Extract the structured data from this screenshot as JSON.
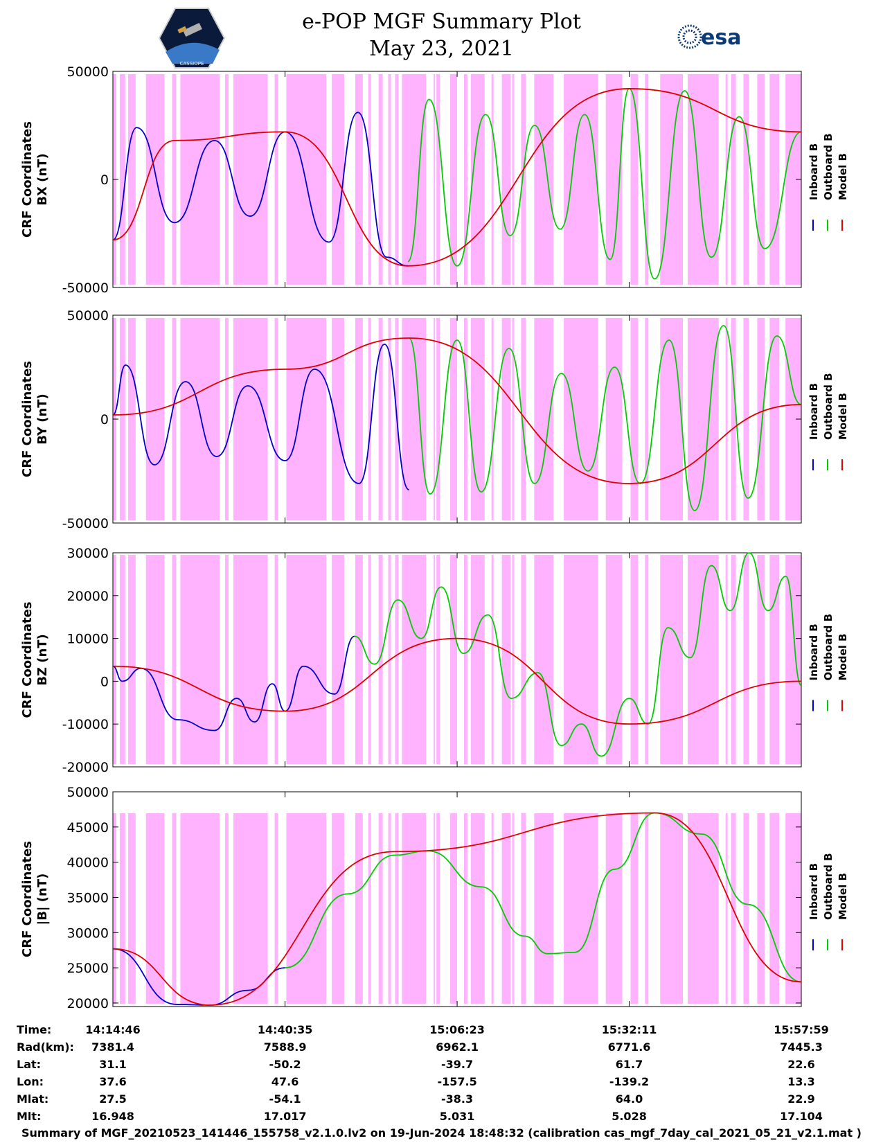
{
  "header": {
    "title_line1": "e-POP MGF Summary Plot",
    "title_line2": "May 23, 2021",
    "logo_left": "CASSIOPE",
    "logo_right": "esa"
  },
  "colors": {
    "background_band": "#ffb3ff",
    "inboard": "#0000cc",
    "outboard": "#00cc00",
    "model": "#e00000"
  },
  "legend": {
    "labels": [
      "Inboard B",
      "Outboard B",
      "Model B"
    ],
    "colors": [
      "#0000cc",
      "#00cc00",
      "#e00000"
    ]
  },
  "chart_data": [
    {
      "type": "line",
      "panel": "BX",
      "ylabel": [
        "CRF Coordinates",
        "BX (nT)"
      ],
      "ylim": [
        -50000,
        50000
      ],
      "yticks": [
        50000,
        0,
        -50000
      ],
      "ytick_labels": [
        "50000",
        "0",
        "-50000"
      ],
      "x_range": [
        "14:14:46",
        "15:57:59"
      ],
      "series": [
        {
          "name": "Inboard B",
          "x": [
            "14:14:46",
            "14:18:20",
            "14:24:00",
            "14:30:00",
            "14:35:20",
            "14:40:35",
            "14:47:10",
            "14:51:30",
            "14:55:50",
            "14:59:00"
          ],
          "values": [
            -28000,
            24000,
            -20000,
            18000,
            -17000,
            22000,
            -29000,
            31000,
            -36000,
            -40000
          ]
        },
        {
          "name": "Outboard B",
          "x": [
            "14:59:00",
            "15:02:10",
            "15:06:23",
            "15:10:40",
            "15:14:20",
            "15:18:00",
            "15:21:50",
            "15:25:30",
            "15:29:20",
            "15:32:11",
            "15:36:00",
            "15:40:30",
            "15:44:30",
            "15:48:40",
            "15:52:30",
            "15:57:59"
          ],
          "values": [
            -38000,
            37000,
            -40000,
            30000,
            -26000,
            25000,
            -23000,
            30000,
            -37000,
            42000,
            -46000,
            41000,
            -36000,
            29000,
            -32000,
            22000
          ]
        },
        {
          "name": "Model B",
          "x": [
            "14:14:46",
            "14:24:00",
            "14:40:35",
            "14:59:00",
            "15:32:11",
            "15:57:59"
          ],
          "values": [
            -28000,
            18000,
            22000,
            -40000,
            42000,
            22000
          ]
        }
      ]
    },
    {
      "type": "line",
      "panel": "BY",
      "ylabel": [
        "CRF Coordinates",
        "BY (nT)"
      ],
      "ylim": [
        -50000,
        50000
      ],
      "yticks": [
        50000,
        0,
        -50000
      ],
      "ytick_labels": [
        "50000",
        "0",
        "-50000"
      ],
      "x_range": [
        "14:14:46",
        "15:57:59"
      ],
      "series": [
        {
          "name": "Inboard B",
          "x": [
            "14:14:46",
            "14:16:40",
            "14:21:00",
            "14:25:40",
            "14:30:20",
            "14:35:00",
            "14:40:35",
            "14:45:00",
            "14:51:40",
            "14:55:30",
            "14:59:10"
          ],
          "values": [
            2000,
            26000,
            -22000,
            18000,
            -18000,
            16000,
            -20000,
            24000,
            -31000,
            36000,
            -34000
          ]
        },
        {
          "name": "Outboard B",
          "x": [
            "14:59:10",
            "15:02:20",
            "15:06:23",
            "15:10:00",
            "15:14:10",
            "15:18:00",
            "15:22:00",
            "15:26:00",
            "15:30:00",
            "15:33:50",
            "15:38:10",
            "15:42:00",
            "15:46:20",
            "15:50:00",
            "15:54:20",
            "15:57:59"
          ],
          "values": [
            39000,
            -36000,
            38000,
            -35000,
            34000,
            -31000,
            22000,
            -25000,
            25000,
            -31000,
            38000,
            -44000,
            45000,
            -38000,
            40000,
            7000
          ]
        },
        {
          "name": "Model B",
          "x": [
            "14:14:46",
            "14:40:35",
            "14:59:10",
            "15:32:11",
            "15:57:59"
          ],
          "values": [
            2000,
            24000,
            39000,
            -31000,
            7000
          ]
        }
      ]
    },
    {
      "type": "line",
      "panel": "BZ",
      "ylabel": [
        "CRF Coordinates",
        "BZ (nT)"
      ],
      "ylim": [
        -20000,
        30000
      ],
      "yticks": [
        30000,
        20000,
        10000,
        0,
        -10000,
        -20000
      ],
      "ytick_labels": [
        "30000",
        "20000",
        "10000",
        "0",
        "-10000",
        "-20000"
      ],
      "x_range": [
        "14:14:46",
        "15:57:59"
      ],
      "series": [
        {
          "name": "Inboard B",
          "x": [
            "14:14:46",
            "14:16:10",
            "14:19:00",
            "14:24:30",
            "14:30:00",
            "14:33:20",
            "14:36:00",
            "14:38:40",
            "14:40:35",
            "14:43:20",
            "14:48:00",
            "14:51:00"
          ],
          "values": [
            3500,
            0,
            3000,
            -9000,
            -11500,
            -4000,
            -9500,
            -600,
            -7000,
            3500,
            -3000,
            10500
          ]
        },
        {
          "name": "Outboard B",
          "x": [
            "14:51:00",
            "14:54:00",
            "14:57:30",
            "15:01:00",
            "15:04:00",
            "15:07:20",
            "15:11:00",
            "15:14:30",
            "15:18:30",
            "15:22:00",
            "15:25:00",
            "15:28:00",
            "15:32:11",
            "15:35:00",
            "15:38:00",
            "15:41:20",
            "15:44:30",
            "15:47:20",
            "15:50:10",
            "15:53:00",
            "15:55:40",
            "15:57:59"
          ],
          "values": [
            10500,
            4000,
            19000,
            10000,
            22000,
            6500,
            15500,
            -4000,
            2000,
            -15000,
            -10000,
            -17500,
            -4000,
            -10000,
            12500,
            5500,
            27000,
            16500,
            30000,
            16500,
            24500,
            -1000
          ]
        },
        {
          "name": "Model B",
          "x": [
            "14:14:46",
            "14:40:35",
            "15:06:23",
            "15:32:11",
            "15:57:59"
          ],
          "values": [
            3500,
            -7000,
            10000,
            -10000,
            0
          ]
        }
      ]
    },
    {
      "type": "line",
      "panel": "|B|",
      "ylabel": [
        "CRF Coordinates",
        "|B| (nT)"
      ],
      "ylim": [
        19500,
        50000
      ],
      "yticks": [
        50000,
        45000,
        40000,
        35000,
        30000,
        25000,
        20000
      ],
      "ytick_labels": [
        "50000",
        "45000",
        "40000",
        "35000",
        "30000",
        "25000",
        "20000"
      ],
      "x_range": [
        "14:14:46",
        "15:57:59"
      ],
      "series": [
        {
          "name": "Inboard B",
          "x": [
            "14:14:46",
            "14:24:20",
            "14:29:20",
            "14:35:00",
            "14:40:35"
          ],
          "values": [
            27700,
            19800,
            19700,
            21800,
            25000
          ]
        },
        {
          "name": "Outboard B",
          "x": [
            "14:40:35",
            "14:50:00",
            "14:57:00",
            "15:02:00",
            "15:10:00",
            "15:16:30",
            "15:20:00",
            "15:24:00",
            "15:30:00",
            "15:36:00",
            "15:43:00",
            "15:50:00",
            "15:57:59"
          ],
          "values": [
            25000,
            35500,
            41000,
            41600,
            36500,
            29500,
            27000,
            27200,
            39000,
            47000,
            44000,
            34000,
            23000
          ]
        },
        {
          "name": "Model B",
          "x": [
            "14:14:46",
            "14:29:20",
            "14:57:00",
            "15:36:00",
            "15:57:59"
          ],
          "values": [
            27700,
            19700,
            41500,
            47000,
            23000
          ]
        }
      ]
    }
  ],
  "pink_bands_fraction": [
    [
      0.0,
      0.005
    ],
    [
      0.01,
      0.018
    ],
    [
      0.022,
      0.033
    ],
    [
      0.048,
      0.075
    ],
    [
      0.086,
      0.092
    ],
    [
      0.098,
      0.155
    ],
    [
      0.163,
      0.168
    ],
    [
      0.175,
      0.225
    ],
    [
      0.235,
      0.24
    ],
    [
      0.252,
      0.31
    ],
    [
      0.318,
      0.336
    ],
    [
      0.352,
      0.363
    ],
    [
      0.371,
      0.375
    ],
    [
      0.386,
      0.392
    ],
    [
      0.4,
      0.404
    ],
    [
      0.41,
      0.415
    ],
    [
      0.42,
      0.455
    ],
    [
      0.466,
      0.468
    ],
    [
      0.47,
      0.475
    ],
    [
      0.49,
      0.5
    ],
    [
      0.51,
      0.515
    ],
    [
      0.52,
      0.54
    ],
    [
      0.55,
      0.553
    ],
    [
      0.565,
      0.578
    ],
    [
      0.58,
      0.583
    ],
    [
      0.593,
      0.6
    ],
    [
      0.612,
      0.64
    ],
    [
      0.655,
      0.705
    ],
    [
      0.716,
      0.74
    ],
    [
      0.752,
      0.763
    ],
    [
      0.773,
      0.778
    ],
    [
      0.795,
      0.828
    ],
    [
      0.835,
      0.88
    ],
    [
      0.89,
      0.893
    ],
    [
      0.898,
      0.905
    ],
    [
      0.916,
      0.924
    ],
    [
      0.936,
      0.947
    ],
    [
      0.954,
      0.968
    ],
    [
      0.977,
      1.0
    ]
  ],
  "info_table": {
    "rows": [
      {
        "label": "Time:",
        "values": [
          "14:14:46",
          "14:40:35",
          "15:06:23",
          "15:32:11",
          "15:57:59"
        ]
      },
      {
        "label": "Rad(km):",
        "values": [
          "7381.4",
          "7588.9",
          "6962.1",
          "6771.6",
          "7445.3"
        ]
      },
      {
        "label": "Lat:",
        "values": [
          "31.1",
          "-50.2",
          "-39.7",
          "61.7",
          "22.6"
        ]
      },
      {
        "label": "Lon:",
        "values": [
          "37.6",
          "47.6",
          "-157.5",
          "-139.2",
          "13.3"
        ]
      },
      {
        "label": "Mlat:",
        "values": [
          "27.5",
          "-54.1",
          "-38.3",
          "64.0",
          "22.9"
        ]
      },
      {
        "label": "Mlt:",
        "values": [
          "16.948",
          "17.017",
          "5.031",
          "5.028",
          "17.104"
        ]
      }
    ]
  },
  "footer": "Summary of MGF_20210523_141446_155758_v2.1.0.lv2 on 19-Jun-2024 18:48:32 (calibration cas_mgf_7day_cal_2021_05_21_v2.1.mat )"
}
